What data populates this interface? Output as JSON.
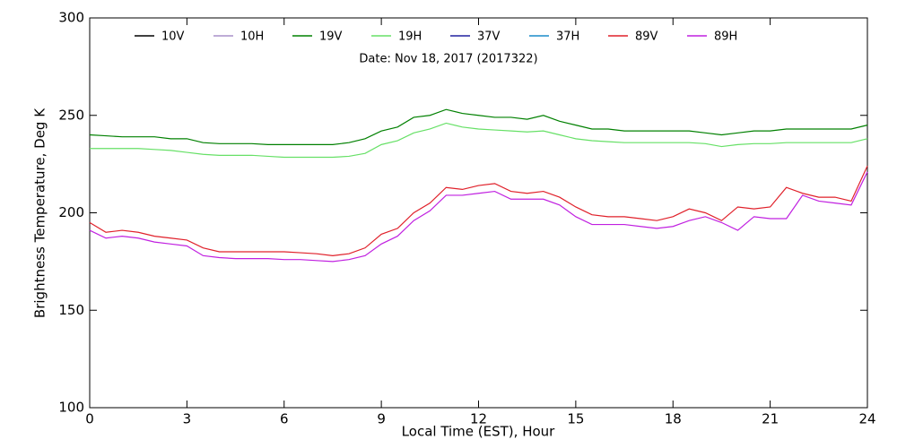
{
  "chart_data": {
    "type": "line",
    "annotation": "Date: Nov 18, 2017 (2017322)",
    "xlabel": "Local Time (EST), Hour",
    "ylabel": "Brightness Temperature, Deg K",
    "xlim": [
      0,
      24
    ],
    "xticks": [
      0,
      3,
      6,
      9,
      12,
      15,
      18,
      21,
      24
    ],
    "ylim": [
      100,
      300
    ],
    "yticks": [
      100,
      150,
      200,
      250,
      300
    ],
    "x": [
      0,
      0.5,
      1,
      1.5,
      2,
      2.5,
      3,
      3.5,
      4,
      4.5,
      5,
      5.5,
      6,
      6.5,
      7,
      7.5,
      8,
      8.5,
      9,
      9.5,
      10,
      10.5,
      11,
      11.5,
      12,
      12.5,
      13,
      13.5,
      14,
      14.5,
      15,
      15.5,
      16,
      16.5,
      17,
      17.5,
      18,
      18.5,
      19,
      19.5,
      20,
      20.5,
      21,
      21.5,
      22,
      22.5,
      23,
      23.5,
      24
    ],
    "series": [
      {
        "name": "10V",
        "color": "#000000",
        "values": [
          null,
          null,
          null,
          null,
          null,
          null,
          null,
          null,
          null,
          null,
          null,
          null,
          null,
          null,
          null,
          null,
          null,
          null,
          null,
          null,
          null,
          null,
          null,
          null,
          null,
          null,
          null,
          null,
          null,
          null,
          null,
          null,
          null,
          null,
          null,
          null,
          null,
          null,
          null,
          null,
          null,
          null,
          null,
          null,
          null,
          null,
          null,
          null,
          null
        ]
      },
      {
        "name": "10H",
        "color": "#a890c8",
        "values": [
          null,
          null,
          null,
          null,
          null,
          null,
          null,
          null,
          null,
          null,
          null,
          null,
          null,
          null,
          null,
          null,
          null,
          null,
          null,
          null,
          null,
          null,
          null,
          null,
          null,
          null,
          null,
          null,
          null,
          null,
          null,
          null,
          null,
          null,
          null,
          null,
          null,
          null,
          null,
          null,
          null,
          null,
          null,
          null,
          null,
          null,
          null,
          null,
          null
        ]
      },
      {
        "name": "19V",
        "color": "#008000",
        "values": [
          240,
          239.5,
          239,
          239,
          239,
          238,
          238,
          236,
          235.5,
          235.5,
          235.5,
          235,
          235,
          235,
          235,
          235,
          236,
          238,
          242,
          244,
          249,
          250,
          253,
          251,
          250,
          249,
          249,
          248,
          250,
          247,
          245,
          243,
          243,
          242,
          242,
          242,
          242,
          242,
          241,
          240,
          241,
          242,
          242,
          243,
          243,
          243,
          243,
          243,
          245
        ]
      },
      {
        "name": "19H",
        "color": "#66e066",
        "values": [
          233,
          233,
          233,
          233,
          232.5,
          232,
          231,
          230,
          229.5,
          229.5,
          229.5,
          229,
          228.5,
          228.5,
          228.5,
          228.5,
          229,
          230.5,
          235,
          237,
          241,
          243,
          246,
          244,
          243,
          242.5,
          242,
          241.5,
          242,
          240,
          238,
          237,
          236.5,
          236,
          236,
          236,
          236,
          236,
          235.5,
          234,
          235,
          235.5,
          235.5,
          236,
          236,
          236,
          236,
          236,
          238
        ]
      },
      {
        "name": "37V",
        "color": "#2020a0",
        "values": [
          null,
          null,
          null,
          null,
          null,
          null,
          null,
          null,
          null,
          null,
          null,
          null,
          null,
          null,
          null,
          null,
          null,
          null,
          null,
          null,
          null,
          null,
          null,
          null,
          null,
          null,
          null,
          null,
          null,
          null,
          null,
          null,
          null,
          null,
          null,
          null,
          null,
          null,
          null,
          null,
          null,
          null,
          null,
          null,
          null,
          null,
          null,
          null,
          null
        ]
      },
      {
        "name": "37H",
        "color": "#1a8cc8",
        "values": [
          null,
          null,
          null,
          null,
          null,
          null,
          null,
          null,
          null,
          null,
          null,
          null,
          null,
          null,
          null,
          null,
          null,
          null,
          null,
          null,
          null,
          null,
          null,
          null,
          null,
          null,
          null,
          null,
          null,
          null,
          null,
          null,
          null,
          null,
          null,
          null,
          null,
          null,
          null,
          null,
          null,
          null,
          null,
          null,
          null,
          null,
          null,
          null,
          null
        ]
      },
      {
        "name": "89V",
        "color": "#e0202a",
        "values": [
          195,
          190,
          191,
          190,
          188,
          187,
          186,
          182,
          180,
          180,
          180,
          180,
          180,
          179.5,
          179,
          178,
          179,
          182,
          189,
          192,
          200,
          205,
          213,
          212,
          214,
          215,
          211,
          210,
          211,
          208,
          203,
          199,
          198,
          198,
          197,
          196,
          198,
          202,
          200,
          196,
          203,
          202,
          203,
          213,
          210,
          208,
          208,
          206,
          224
        ]
      },
      {
        "name": "89H",
        "color": "#c020e0",
        "values": [
          191,
          187,
          188,
          187,
          185,
          184,
          183,
          178,
          177,
          176.5,
          176.5,
          176.5,
          176,
          176,
          175.5,
          175,
          176,
          178,
          184,
          188,
          196,
          201,
          209,
          209,
          210,
          211,
          207,
          207,
          207,
          204,
          198,
          194,
          194,
          194,
          193,
          192,
          193,
          196,
          198,
          195,
          191,
          198,
          197,
          197,
          209,
          206,
          205,
          204,
          221
        ]
      }
    ]
  }
}
